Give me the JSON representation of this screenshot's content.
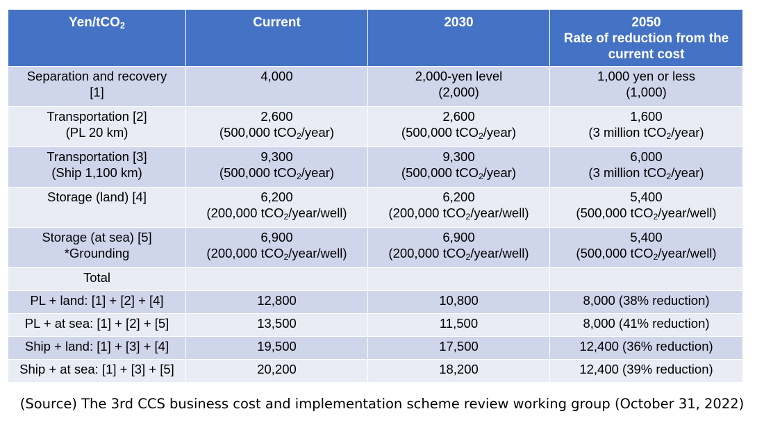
{
  "header": {
    "col0": {
      "main": "Yen/tCO",
      "sub": "2"
    },
    "col1": "Current",
    "col2": "2030",
    "col3": [
      "2050",
      "Rate of reduction from the",
      "current cost"
    ]
  },
  "rows": [
    {
      "label": [
        "Separation and recovery",
        "[1]"
      ],
      "current": [
        {
          "t": "4,000"
        }
      ],
      "y2030": [
        {
          "t": "2,000-yen level"
        },
        {
          "t": "(2,000)"
        }
      ],
      "y2050": [
        {
          "t": "1,000 yen or less"
        },
        {
          "t": "(1,000)"
        }
      ]
    },
    {
      "label": [
        "Transportation [2]",
        "(PL 20 km)"
      ],
      "current": [
        {
          "t": "2,600"
        },
        {
          "a": "(500,000 tCO",
          "s": "2",
          "b": "/year)"
        }
      ],
      "y2030": [
        {
          "t": "2,600"
        },
        {
          "a": "(500,000 tCO",
          "s": "2",
          "b": "/year)"
        }
      ],
      "y2050": [
        {
          "t": "1,600"
        },
        {
          "a": "(3 million tCO",
          "s": "2",
          "b": "/year)"
        }
      ]
    },
    {
      "label": [
        "Transportation [3]",
        "(Ship 1,100 km)"
      ],
      "current": [
        {
          "t": "9,300"
        },
        {
          "a": "(500,000 tCO",
          "s": "2",
          "b": "/year)"
        }
      ],
      "y2030": [
        {
          "t": "9,300"
        },
        {
          "a": "(500,000 tCO",
          "s": "2",
          "b": "/year)"
        }
      ],
      "y2050": [
        {
          "t": "6,000"
        },
        {
          "a": "(3 million tCO",
          "s": "2",
          "b": "/year)"
        }
      ]
    },
    {
      "label": [
        "Storage (land) [4]"
      ],
      "current": [
        {
          "t": "6,200"
        },
        {
          "a": "(200,000 tCO",
          "s": "2",
          "b": "/year/well)"
        }
      ],
      "y2030": [
        {
          "t": "6,200"
        },
        {
          "a": "(200,000 tCO",
          "s": "2",
          "b": "/year/well)"
        }
      ],
      "y2050": [
        {
          "t": "5,400"
        },
        {
          "a": "(500,000 tCO",
          "s": "2",
          "b": "/year/well)"
        }
      ]
    },
    {
      "label": [
        "Storage (at sea) [5]",
        "*Grounding"
      ],
      "current": [
        {
          "t": "6,900"
        },
        {
          "a": "(200,000 tCO",
          "s": "2",
          "b": "/year/well)"
        }
      ],
      "y2030": [
        {
          "t": "6,900"
        },
        {
          "a": "(200,000 tCO",
          "s": "2",
          "b": "/year/well)"
        }
      ],
      "y2050": [
        {
          "t": "5,400"
        },
        {
          "a": "(500,000 tCO",
          "s": "2",
          "b": "/year/well)"
        }
      ]
    },
    {
      "label": [
        "Total"
      ],
      "current": [],
      "y2030": [],
      "y2050": []
    },
    {
      "label": [
        "PL + land: [1] + [2] + [4]"
      ],
      "current": [
        {
          "t": "12,800"
        }
      ],
      "y2030": [
        {
          "t": "10,800"
        }
      ],
      "y2050": [
        {
          "t": "8,000 (38% reduction)"
        }
      ]
    },
    {
      "label": [
        "PL + at sea: [1] + [2] + [5]"
      ],
      "current": [
        {
          "t": "13,500"
        }
      ],
      "y2030": [
        {
          "t": "11,500"
        }
      ],
      "y2050": [
        {
          "t": "8,000 (41% reduction)"
        }
      ]
    },
    {
      "label": [
        "Ship + land: [1] + [3] + [4]"
      ],
      "current": [
        {
          "t": "19,500"
        }
      ],
      "y2030": [
        {
          "t": "17,500"
        }
      ],
      "y2050": [
        {
          "t": "12,400 (36% reduction)"
        }
      ]
    },
    {
      "label": [
        "Ship + at sea: [1] + [3] + [5]"
      ],
      "current": [
        {
          "t": "20,200"
        }
      ],
      "y2030": [
        {
          "t": "18,200"
        }
      ],
      "y2050": [
        {
          "t": "12,400 (39% reduction)"
        }
      ]
    }
  ],
  "source": "(Source) The 3rd CCS business cost and implementation scheme review working group (October 31, 2022)"
}
